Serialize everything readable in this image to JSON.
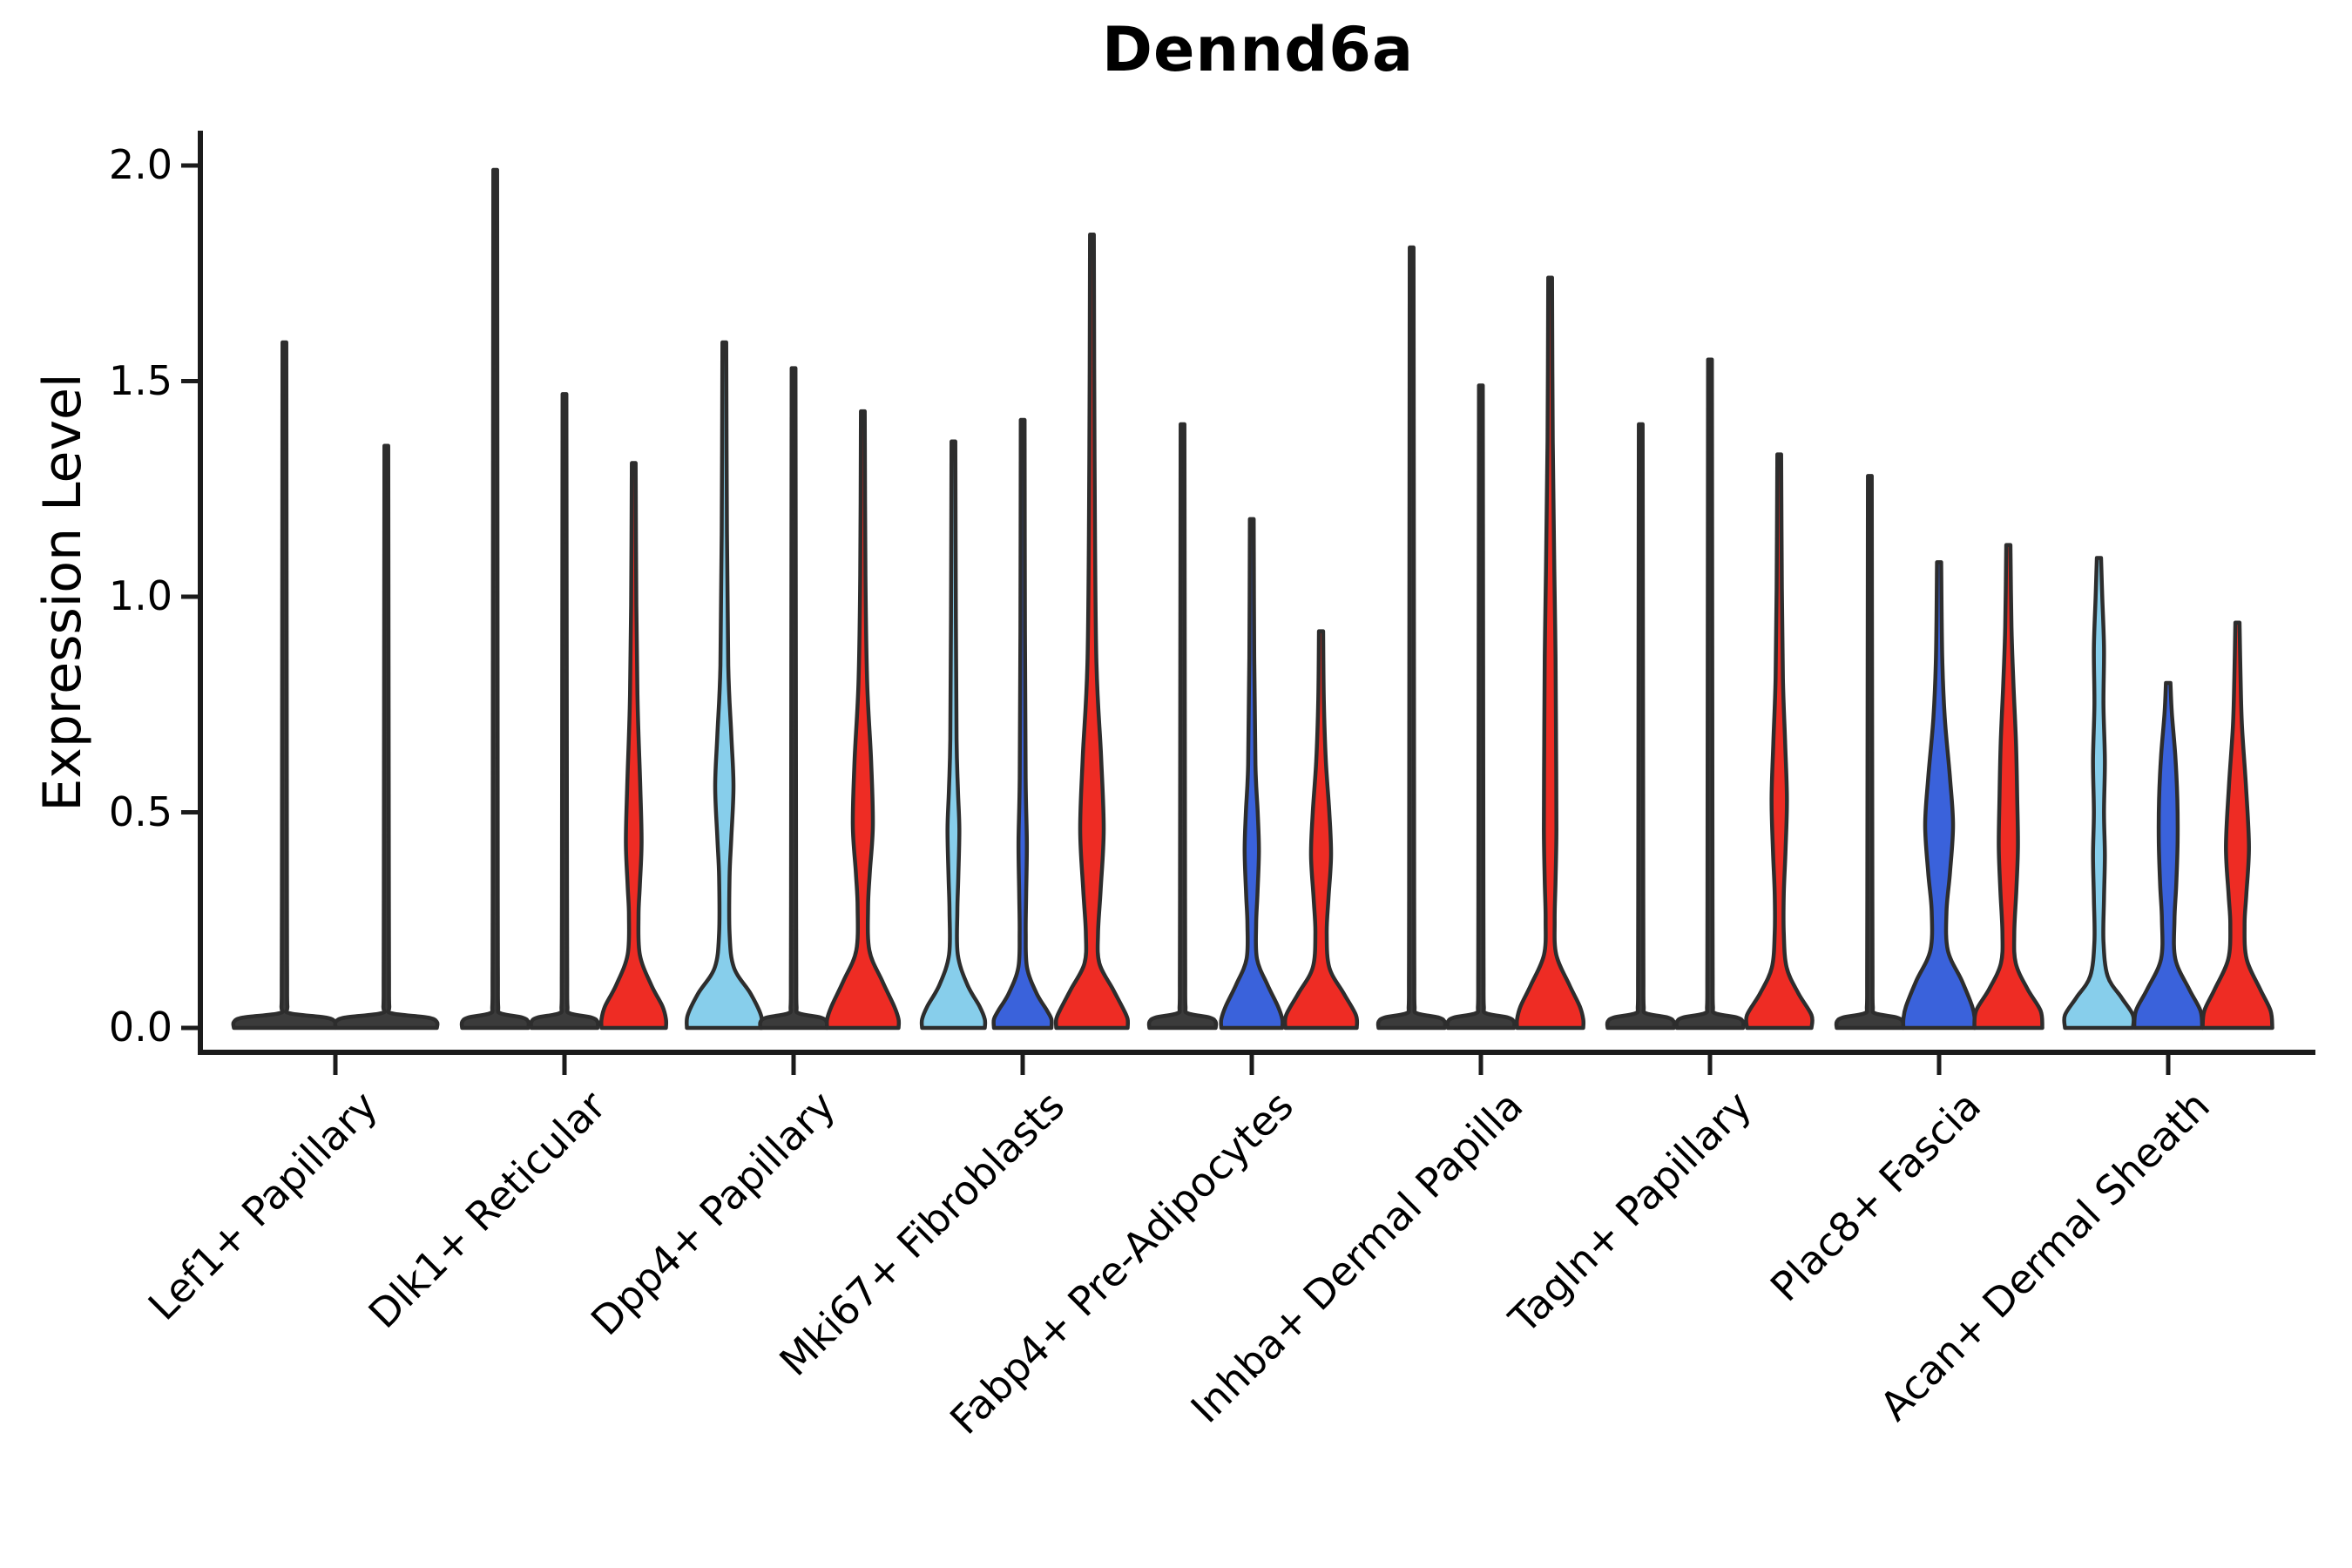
{
  "title": {
    "text": "Dennd6a"
  },
  "y_axis": {
    "label": "Expression Level",
    "tick_labels": [
      "0.0",
      "0.5",
      "1.0",
      "1.5",
      "2.0"
    ],
    "tick_values": [
      0,
      0.5,
      1.0,
      1.5,
      2.0
    ]
  },
  "palette": {
    "skyblue": "#87CEEB",
    "blue": "#3A62DB",
    "red": "#EE2C24",
    "collapsed": "#3b3b3b",
    "outline": "#2d2d2d",
    "axis": "#1b1b1b"
  },
  "chart_data": {
    "type": "violin",
    "title": "Dennd6a",
    "ylabel": "Expression Level",
    "ylim": [
      0,
      2.08
    ],
    "yticks": [
      0,
      0.5,
      1.0,
      1.5,
      2.0
    ],
    "grid": false,
    "legend": null,
    "categories": [
      "Lef1+ Papillary",
      "Dlk1+ Reticular",
      "Dpp4+ Papillary",
      "Mki67+ Fibroblasts",
      "Fabp4+ Pre-Adipocytes",
      "Inhba+ Dermal Papilla",
      "Tagln+ Papillary",
      "Plac8+ Fascia",
      "Acan+ Dermal Sheath"
    ],
    "groups": [
      {
        "label": "Lef1+ Papillary",
        "violins": [
          {
            "fill": null,
            "max": 1.59,
            "flat": true,
            "halfwidth": 58
          },
          {
            "fill": null,
            "max": 1.35,
            "flat": true,
            "halfwidth": 58
          }
        ]
      },
      {
        "label": "Dlk1+ Reticular",
        "violins": [
          {
            "fill": null,
            "max": 1.99,
            "flat": true,
            "halfwidth": 38
          },
          {
            "fill": null,
            "max": 1.47,
            "flat": true,
            "halfwidth": 38
          },
          {
            "fill": "red",
            "max": 1.31,
            "profile": [
              [
                1.31,
                2.2
              ],
              [
                0.98,
                3
              ],
              [
                0.75,
                4.5
              ],
              [
                0.56,
                7.5
              ],
              [
                0.43,
                9
              ],
              [
                0.33,
                7
              ],
              [
                0.26,
                5.5
              ],
              [
                0.17,
                7
              ],
              [
                0.1,
                20
              ],
              [
                0.05,
                33
              ],
              [
                0.02,
                37
              ],
              [
                0,
                37
              ]
            ]
          }
        ]
      },
      {
        "label": "Dpp4+ Papillary",
        "violins": [
          {
            "fill": "skyblue",
            "max": 1.59,
            "profile": [
              [
                1.59,
                2.2
              ],
              [
                1.15,
                3
              ],
              [
                0.84,
                4.5
              ],
              [
                0.68,
                8
              ],
              [
                0.56,
                10.5
              ],
              [
                0.44,
                8
              ],
              [
                0.35,
                6
              ],
              [
                0.22,
                6
              ],
              [
                0.14,
                11
              ],
              [
                0.08,
                30
              ],
              [
                0.03,
                42
              ],
              [
                0,
                43
              ]
            ]
          },
          {
            "fill": null,
            "max": 1.53,
            "flat": true,
            "halfwidth": 38
          },
          {
            "fill": "red",
            "max": 1.43,
            "profile": [
              [
                1.43,
                2.2
              ],
              [
                1.05,
                3
              ],
              [
                0.8,
                5
              ],
              [
                0.62,
                9.5
              ],
              [
                0.47,
                11.5
              ],
              [
                0.36,
                8
              ],
              [
                0.28,
                6
              ],
              [
                0.18,
                7.5
              ],
              [
                0.11,
                22
              ],
              [
                0.05,
                36
              ],
              [
                0.02,
                41
              ],
              [
                0,
                41
              ]
            ]
          }
        ]
      },
      {
        "label": "Mki67+ Fibroblasts",
        "violins": [
          {
            "fill": "skyblue",
            "max": 1.36,
            "profile": [
              [
                1.36,
                2.2
              ],
              [
                0.95,
                2.8
              ],
              [
                0.67,
                3.6
              ],
              [
                0.55,
                5.2
              ],
              [
                0.46,
                6.8
              ],
              [
                0.35,
                5.6
              ],
              [
                0.27,
                4.5
              ],
              [
                0.17,
                5
              ],
              [
                0.1,
                16
              ],
              [
                0.05,
                30
              ],
              [
                0.02,
                36
              ],
              [
                0,
                36
              ]
            ]
          },
          {
            "fill": "blue",
            "max": 1.41,
            "profile": [
              [
                1.41,
                2.2
              ],
              [
                0.92,
                2.6
              ],
              [
                0.58,
                3.4
              ],
              [
                0.43,
                4.8
              ],
              [
                0.31,
                4
              ],
              [
                0.22,
                3.5
              ],
              [
                0.14,
                5
              ],
              [
                0.08,
                16
              ],
              [
                0.04,
                28
              ],
              [
                0.02,
                33
              ],
              [
                0,
                33
              ]
            ]
          },
          {
            "fill": "red",
            "max": 1.84,
            "profile": [
              [
                1.84,
                2.2
              ],
              [
                1.32,
                3
              ],
              [
                0.86,
                5
              ],
              [
                0.63,
                10.5
              ],
              [
                0.46,
                13.5
              ],
              [
                0.32,
                10
              ],
              [
                0.22,
                7
              ],
              [
                0.15,
                8.5
              ],
              [
                0.09,
                24
              ],
              [
                0.04,
                37
              ],
              [
                0.02,
                41
              ],
              [
                0,
                41
              ]
            ]
          }
        ]
      },
      {
        "label": "Fabp4+ Pre-Adipocytes",
        "violins": [
          {
            "fill": null,
            "max": 1.4,
            "flat": true,
            "halfwidth": 38
          },
          {
            "fill": "blue",
            "max": 1.18,
            "profile": [
              [
                1.18,
                2.2
              ],
              [
                0.86,
                2.8
              ],
              [
                0.61,
                4.2
              ],
              [
                0.5,
                6.8
              ],
              [
                0.41,
                8.2
              ],
              [
                0.31,
                6.5
              ],
              [
                0.24,
                5
              ],
              [
                0.16,
                6
              ],
              [
                0.1,
                18
              ],
              [
                0.05,
                30
              ],
              [
                0.02,
                35
              ],
              [
                0,
                35
              ]
            ]
          },
          {
            "fill": "red",
            "max": 0.92,
            "profile": [
              [
                0.92,
                2.4
              ],
              [
                0.76,
                3.2
              ],
              [
                0.62,
                5.5
              ],
              [
                0.5,
                9.5
              ],
              [
                0.4,
                11.5
              ],
              [
                0.3,
                8.5
              ],
              [
                0.22,
                6.5
              ],
              [
                0.14,
                9.5
              ],
              [
                0.08,
                26
              ],
              [
                0.03,
                40
              ],
              [
                0,
                41
              ]
            ]
          }
        ]
      },
      {
        "label": "Inhba+ Dermal Papilla",
        "violins": [
          {
            "fill": null,
            "max": 1.81,
            "flat": true,
            "halfwidth": 38
          },
          {
            "fill": null,
            "max": 1.49,
            "flat": true,
            "halfwidth": 38
          },
          {
            "fill": "red",
            "max": 1.74,
            "profile": [
              [
                1.74,
                2.2
              ],
              [
                1.36,
                3
              ],
              [
                1.06,
                4.8
              ],
              [
                0.86,
                6.2
              ],
              [
                0.66,
                6.8
              ],
              [
                0.46,
                7.2
              ],
              [
                0.34,
                6.2
              ],
              [
                0.25,
                5.2
              ],
              [
                0.17,
                7
              ],
              [
                0.1,
                22
              ],
              [
                0.05,
                34
              ],
              [
                0.02,
                38
              ],
              [
                0,
                38
              ]
            ]
          }
        ]
      },
      {
        "label": "Tagln+ Papillary",
        "violins": [
          {
            "fill": null,
            "max": 1.4,
            "flat": true,
            "halfwidth": 38
          },
          {
            "fill": null,
            "max": 1.55,
            "flat": true,
            "halfwidth": 38
          },
          {
            "fill": "red",
            "max": 1.33,
            "profile": [
              [
                1.33,
                2.2
              ],
              [
                1.02,
                3
              ],
              [
                0.81,
                4.2
              ],
              [
                0.66,
                6.8
              ],
              [
                0.53,
                8.8
              ],
              [
                0.41,
                7.2
              ],
              [
                0.31,
                5.2
              ],
              [
                0.22,
                5.2
              ],
              [
                0.14,
                8.5
              ],
              [
                0.08,
                22
              ],
              [
                0.03,
                37
              ],
              [
                0,
                37
              ]
            ]
          }
        ]
      },
      {
        "label": "Plac8+ Fascia",
        "violins": [
          {
            "fill": null,
            "max": 1.28,
            "flat": true,
            "halfwidth": 38
          },
          {
            "fill": "blue",
            "max": 1.08,
            "profile": [
              [
                1.08,
                2.4
              ],
              [
                0.86,
                3.6
              ],
              [
                0.72,
                6.5
              ],
              [
                0.58,
                12.5
              ],
              [
                0.47,
                16
              ],
              [
                0.36,
                12.5
              ],
              [
                0.27,
                8.5
              ],
              [
                0.18,
                10
              ],
              [
                0.11,
                26
              ],
              [
                0.05,
                38
              ],
              [
                0.02,
                41
              ],
              [
                0,
                41
              ]
            ]
          },
          {
            "fill": "red",
            "max": 1.12,
            "profile": [
              [
                1.12,
                2.4
              ],
              [
                0.93,
                3.6
              ],
              [
                0.8,
                5.8
              ],
              [
                0.66,
                8.8
              ],
              [
                0.53,
                10.2
              ],
              [
                0.42,
                11
              ],
              [
                0.32,
                9.2
              ],
              [
                0.22,
                6.8
              ],
              [
                0.15,
                8.5
              ],
              [
                0.09,
                22
              ],
              [
                0.04,
                37
              ],
              [
                0,
                39
              ]
            ]
          }
        ]
      },
      {
        "label": "Acan+ Dermal Sheath",
        "violins": [
          {
            "fill": "skyblue",
            "max": 1.09,
            "profile": [
              [
                1.09,
                2.4
              ],
              [
                1.0,
                3.8
              ],
              [
                0.88,
                5.8
              ],
              [
                0.75,
                5.2
              ],
              [
                0.62,
                6.8
              ],
              [
                0.5,
                5.8
              ],
              [
                0.4,
                6.8
              ],
              [
                0.3,
                5.8
              ],
              [
                0.2,
                5.2
              ],
              [
                0.12,
                10
              ],
              [
                0.07,
                26
              ],
              [
                0.03,
                39
              ],
              [
                0,
                39
              ]
            ]
          },
          {
            "fill": "blue",
            "max": 0.8,
            "profile": [
              [
                0.8,
                2.6
              ],
              [
                0.73,
                4.2
              ],
              [
                0.63,
                8.2
              ],
              [
                0.53,
                10.5
              ],
              [
                0.43,
                10.8
              ],
              [
                0.33,
                9.2
              ],
              [
                0.25,
                7.2
              ],
              [
                0.16,
                8.2
              ],
              [
                0.09,
                24
              ],
              [
                0.04,
                37
              ],
              [
                0,
                39
              ]
            ]
          },
          {
            "fill": "red",
            "max": 0.94,
            "profile": [
              [
                0.94,
                2.4
              ],
              [
                0.81,
                3.6
              ],
              [
                0.7,
                5.2
              ],
              [
                0.56,
                9.8
              ],
              [
                0.42,
                13.2
              ],
              [
                0.31,
                10.2
              ],
              [
                0.24,
                8.2
              ],
              [
                0.16,
                10.5
              ],
              [
                0.09,
                26
              ],
              [
                0.04,
                38
              ],
              [
                0,
                40
              ]
            ]
          }
        ]
      }
    ]
  }
}
